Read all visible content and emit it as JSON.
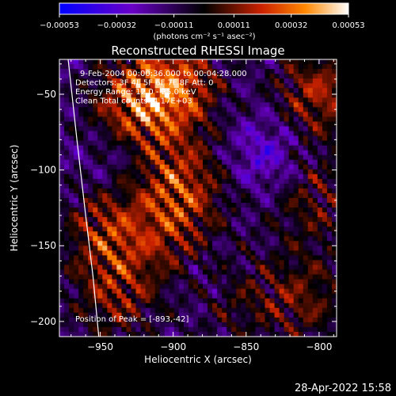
{
  "chart_data": {
    "type": "heatmap",
    "title": "Reconstructed RHESSI Image",
    "xlabel": "Heliocentric X (arcsec)",
    "ylabel": "Heliocentric Y (arcsec)",
    "xlim": [
      -978,
      -788
    ],
    "ylim": [
      -210,
      -27
    ],
    "x_ticks": [
      {
        "value": -950,
        "label": "−950"
      },
      {
        "value": -900,
        "label": "−900"
      },
      {
        "value": -850,
        "label": "−850"
      },
      {
        "value": -800,
        "label": "−800"
      }
    ],
    "y_ticks": [
      {
        "value": -50,
        "label": "−50"
      },
      {
        "value": -100,
        "label": "−100"
      },
      {
        "value": -150,
        "label": "−150"
      },
      {
        "value": -200,
        "label": "−200"
      }
    ],
    "colorbar": {
      "range": [
        -0.00053,
        0.00053
      ],
      "ticks": [
        {
          "value": -0.00053,
          "label": "−0.00053"
        },
        {
          "value": -0.00032,
          "label": "−0.00032"
        },
        {
          "value": -0.00011,
          "label": "−0.00011"
        },
        {
          "value": 0.00011,
          "label": "0.00011"
        },
        {
          "value": 0.00032,
          "label": "0.00032"
        },
        {
          "value": 0.00053,
          "label": "0.00053"
        }
      ],
      "units_text": "(photons cm⁻² s⁻¹ asec⁻²)",
      "colors": [
        "#0000ff",
        "#6a00c8",
        "#000000",
        "#cc2200",
        "#ff8800",
        "#ffffff"
      ]
    },
    "annotations": [
      "9-Feb-2004 00:00:36.000 to 00:04:28.000",
      "Detectors: 3F 4F 5F 6F 7F 8F  Att: 0",
      "Energy Range: 12.0 - 25.0 keV",
      "Clean     Total counts: 4.17E+03"
    ],
    "peak_label": "Position of Peak = [-893,-42]",
    "peak": [
      -893,
      -42
    ],
    "limb_curve": [
      [
        -972,
        -27
      ],
      [
        -966,
        -80
      ],
      [
        -960,
        -130
      ],
      [
        -955,
        -170
      ],
      [
        -951,
        -210
      ]
    ],
    "hot_regions": [
      {
        "x": -900,
        "y": -45,
        "amp": 1.0
      },
      {
        "x": -895,
        "y": -110,
        "amp": 0.8
      },
      {
        "x": -930,
        "y": -60,
        "amp": 0.75
      },
      {
        "x": -945,
        "y": -140,
        "amp": 0.7
      },
      {
        "x": -900,
        "y": -150,
        "amp": 0.45
      },
      {
        "x": -940,
        "y": -185,
        "amp": 0.55
      },
      {
        "x": -800,
        "y": -50,
        "amp": 0.75
      },
      {
        "x": -805,
        "y": -120,
        "amp": 0.5
      },
      {
        "x": -810,
        "y": -185,
        "amp": 0.55
      },
      {
        "x": -860,
        "y": -185,
        "amp": 0.4
      }
    ],
    "cold_regions": [
      {
        "x": -835,
        "y": -90,
        "amp": 0.55
      },
      {
        "x": -880,
        "y": -170,
        "amp": 0.35
      },
      {
        "x": -940,
        "y": -90,
        "amp": 0.3
      }
    ]
  },
  "footer": {
    "date": "28-Apr-2022 15:58"
  }
}
